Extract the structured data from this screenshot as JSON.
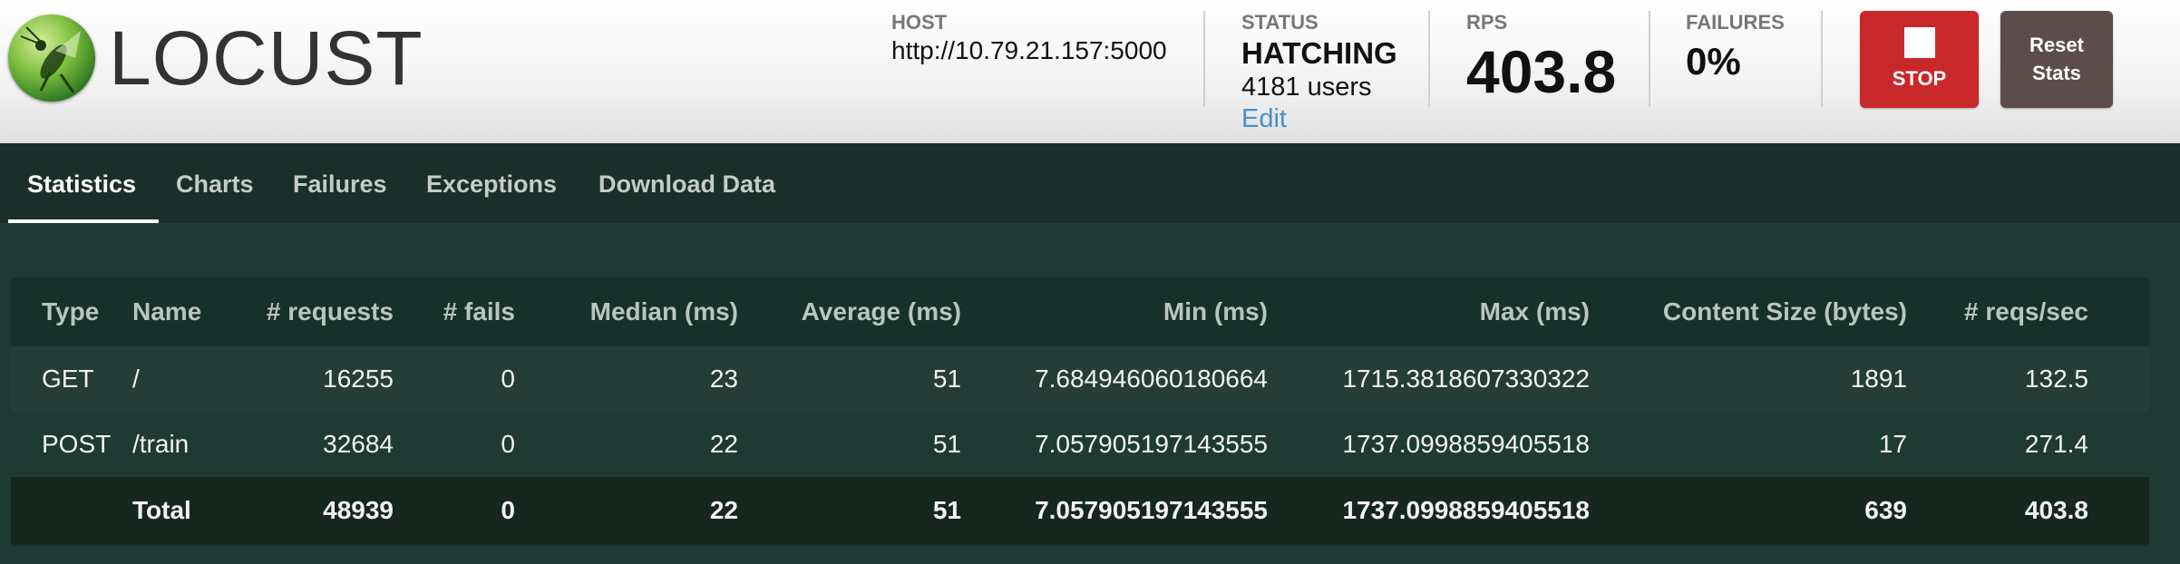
{
  "brand": {
    "name": "LOCUST"
  },
  "header": {
    "host": {
      "label": "HOST",
      "value": "http://10.79.21.157:5000"
    },
    "status": {
      "label": "STATUS",
      "value": "HATCHING",
      "users": "4181 users",
      "edit": "Edit"
    },
    "rps": {
      "label": "RPS",
      "value": "403.8"
    },
    "failures": {
      "label": "FAILURES",
      "value": "0%"
    },
    "stop_label": "STOP",
    "reset_label_line1": "Reset",
    "reset_label_line2": "Stats"
  },
  "tabs": [
    {
      "label": "Statistics",
      "active": true
    },
    {
      "label": "Charts"
    },
    {
      "label": "Failures"
    },
    {
      "label": "Exceptions"
    },
    {
      "label": "Download Data"
    }
  ],
  "table": {
    "columns": [
      "Type",
      "Name",
      "# requests",
      "# fails",
      "Median (ms)",
      "Average (ms)",
      "Min (ms)",
      "Max (ms)",
      "Content Size (bytes)",
      "# reqs/sec"
    ],
    "rows": [
      [
        "GET",
        "/",
        "16255",
        "0",
        "23",
        "51",
        "7.684946060180664",
        "1715.3818607330322",
        "1891",
        "132.5"
      ],
      [
        "POST",
        "/train",
        "32684",
        "0",
        "22",
        "51",
        "7.057905197143555",
        "1737.0998859405518",
        "17",
        "271.4"
      ]
    ],
    "total": [
      "",
      "Total",
      "48939",
      "0",
      "22",
      "51",
      "7.057905197143555",
      "1737.0998859405518",
      "639",
      "403.8"
    ]
  },
  "colors": {
    "stop": "#c9282a",
    "reset": "#5c4d4c",
    "tab_bar": "#1b2f2a",
    "table_bg": "#18302a",
    "link": "#4a8fd0"
  },
  "icons": [
    "locust-logo-icon",
    "stop-square-icon"
  ]
}
